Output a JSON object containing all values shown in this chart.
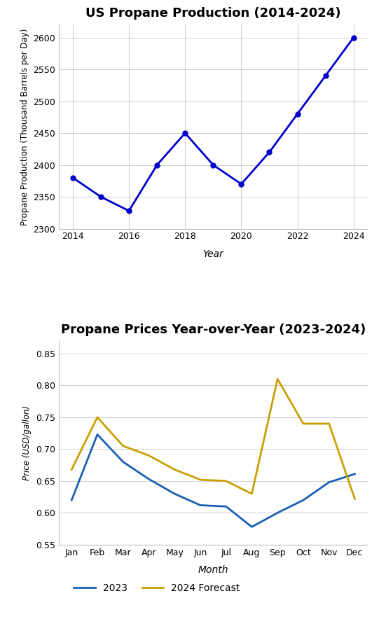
{
  "top_chart": {
    "title": "US Propane Production (2014-2024)",
    "xlabel": "Year",
    "ylabel": "Propane Production (Thousand Barrels per Day)",
    "years": [
      2014,
      2015,
      2016,
      2017,
      2018,
      2019,
      2020,
      2021,
      2022,
      2023,
      2024
    ],
    "values": [
      2380,
      2350,
      2328,
      2400,
      2450,
      2400,
      2370,
      2420,
      2480,
      2540,
      2600
    ],
    "line_color": "#0000cc",
    "marker": "o",
    "ylim": [
      2300,
      2620
    ],
    "yticks": [
      2300,
      2350,
      2400,
      2450,
      2500,
      2550,
      2600
    ],
    "xticks": [
      2014,
      2016,
      2018,
      2020,
      2022,
      2024
    ],
    "title_fontsize": 13,
    "label_fontsize": 10,
    "tick_fontsize": 9
  },
  "bottom_chart": {
    "title": "Propane Prices Year-over-Year (2023-2024)",
    "xlabel": "Month",
    "ylabel": "Price (USD/gallon)",
    "months": [
      "Jan",
      "Feb",
      "Mar",
      "Apr",
      "May",
      "Jun",
      "Jul",
      "Aug",
      "Sep",
      "Oct",
      "Nov",
      "Dec"
    ],
    "prices_2023": [
      0.62,
      0.723,
      0.68,
      0.653,
      0.63,
      0.612,
      0.61,
      0.578,
      0.6,
      0.62,
      0.648,
      0.661
    ],
    "prices_2024": [
      0.668,
      0.75,
      0.705,
      0.69,
      0.668,
      0.652,
      0.65,
      0.63,
      0.81,
      0.74,
      0.74,
      0.622
    ],
    "color_2023": "#1a5fb4",
    "color_2024": "#c8a000",
    "ylim": [
      0.55,
      0.87
    ],
    "yticks": [
      0.55,
      0.6,
      0.65,
      0.7,
      0.75,
      0.8,
      0.85
    ],
    "legend_labels": [
      "2023",
      "2024 Forecast"
    ],
    "title_fontsize": 13,
    "label_fontsize": 10,
    "tick_fontsize": 9
  },
  "background_color": "#ffffff",
  "grid_color": "#cccccc",
  "grid_linewidth": 0.7
}
